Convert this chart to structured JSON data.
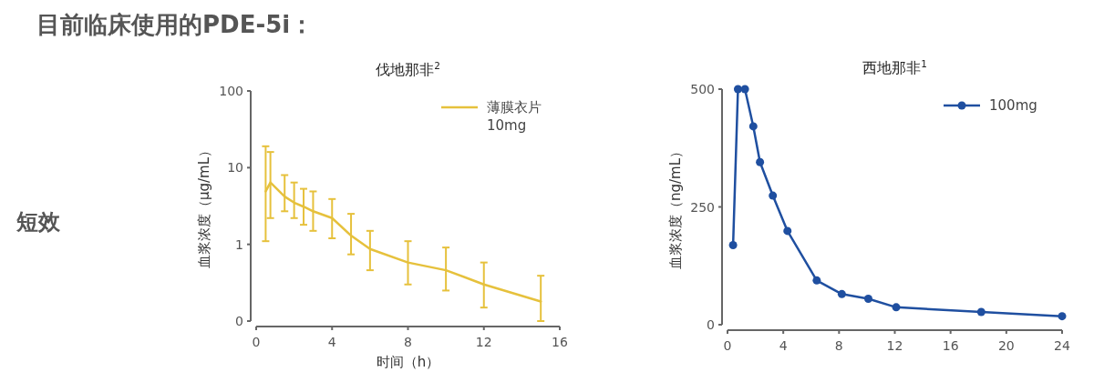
{
  "chart_data": [
    {
      "type": "line",
      "title": "伐地那非$^{2}$",
      "xlabel": "时间（h）",
      "ylabel": "血浆浓度（μg/mL）",
      "log": "y",
      "annotations": [
        "目前临床使用的PDE-5i：",
        "短效"
      ],
      "xlim": [
        0,
        16
      ],
      "xticks": [
        0,
        4,
        8,
        12,
        16
      ],
      "ylim": [
        0.1,
        100
      ],
      "yticks": [
        {
          "value": 0.1,
          "label": "0"
        },
        1,
        10,
        100
      ],
      "legend": "top right",
      "grid": false,
      "marker": "none",
      "line_style": "solid",
      "series": [
        {
          "name": "薄膜衣片 10mg",
          "color": "#e6c13c",
          "x": [
            0.5,
            0.75,
            1.5,
            2,
            2.5,
            3,
            4,
            5,
            6,
            8,
            10,
            12,
            15
          ],
          "values": [
            4.9,
            6.4,
            4.2,
            3.5,
            3.1,
            2.7,
            2.2,
            1.3,
            0.87,
            0.58,
            0.46,
            0.3,
            0.18
          ],
          "errors": [
            [
              1.1,
              19
            ],
            [
              2.2,
              16
            ],
            [
              2.7,
              8
            ],
            [
              2.2,
              6.4
            ],
            [
              1.8,
              5.3
            ],
            [
              1.5,
              4.9
            ],
            [
              1.2,
              3.9
            ],
            [
              0.74,
              2.5
            ],
            [
              0.46,
              1.5
            ],
            [
              0.3,
              1.1
            ],
            [
              0.25,
              0.91
            ],
            [
              0.15,
              0.58
            ],
            [
              0.1,
              0.39
            ]
          ]
        }
      ]
    },
    {
      "type": "line",
      "title": "西地那非$^{1}$",
      "ylabel": "血浆浓度（ng/mL）",
      "xlim": [
        0,
        24
      ],
      "xticks": [
        0,
        4,
        8,
        12,
        16,
        20,
        24
      ],
      "ylim": [
        0,
        500
      ],
      "yticks": [
        0,
        250,
        500
      ],
      "legend": "top right",
      "grid": false,
      "marker": "circle",
      "line_style": "solid",
      "series": [
        {
          "name": "100mg",
          "color": "#1f4fa0",
          "x": [
            0.4,
            0.75,
            1.25,
            1.85,
            2.33,
            3.25,
            4.3,
            6.4,
            8.2,
            10.1,
            12.1,
            18.2,
            24
          ],
          "values": [
            169,
            500,
            500,
            421,
            345,
            274,
            199,
            94,
            65,
            55,
            37,
            27,
            18
          ]
        }
      ]
    }
  ]
}
